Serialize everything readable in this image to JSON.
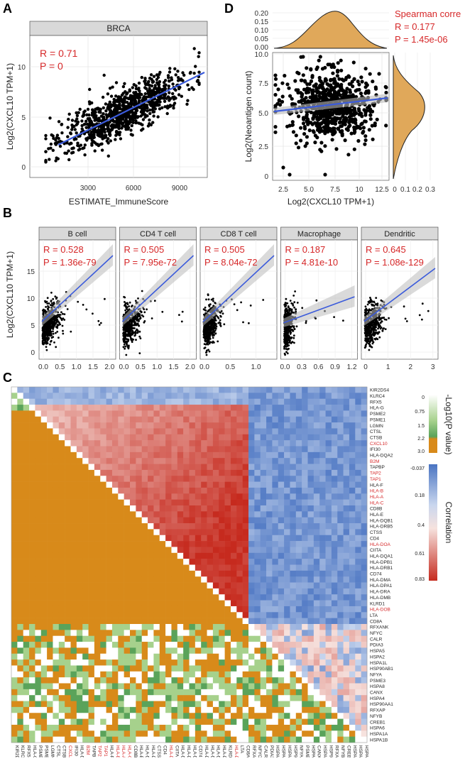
{
  "panels": {
    "A": {
      "letter": "A",
      "strip": "BRCA",
      "xlabel": "ESTIMATE_ImmuneScore",
      "ylabel": "Log2(CXCL10 TPM+1)",
      "stat_r": "R = 0.71",
      "stat_p": "P = 0",
      "xticks": [
        "3000",
        "6000",
        "9000"
      ],
      "yticks": [
        "0",
        "5",
        "10"
      ]
    },
    "D": {
      "letter": "D",
      "xlabel": "Log2(CXCL10 TPM+1)",
      "ylabel": "Log2(Neoantigen count)",
      "title": "Spearman corre",
      "stat_r": "R = 0.177",
      "stat_p": "P = 1.45e-06",
      "xticks": [
        "2.5",
        "5.0",
        "7.5",
        "10",
        "12.5"
      ],
      "yticks": [
        "0",
        "2.5",
        "5.0",
        "7.5",
        "10.0"
      ],
      "top_density_ticks": [
        "0.20",
        "0.15",
        "0.10",
        "0.05",
        "0.00"
      ],
      "right_density_ticks": [
        "0",
        "0.1",
        "0.2",
        "0.3"
      ]
    },
    "B": {
      "letter": "B",
      "ylabel": "Log2(CXCL10 TPM+1)",
      "yticks": [
        "0",
        "5",
        "10",
        "15"
      ],
      "facets": [
        {
          "name": "B cell",
          "r": "R = 0.528",
          "p": "P = 1.36e-79",
          "xticks": [
            "0.0",
            "0.5",
            "1.0",
            "1.5",
            "2.0"
          ]
        },
        {
          "name": "CD4 T cell",
          "r": "R = 0.505",
          "p": "P = 7.95e-72",
          "xticks": [
            "0.0",
            "0.5",
            "1.0",
            "1.5",
            "2.0"
          ]
        },
        {
          "name": "CD8 T cell",
          "r": "R = 0.505",
          "p": "P = 8.04e-72",
          "xticks": [
            "0.0",
            "0.5",
            "1.0"
          ]
        },
        {
          "name": "Macrophage",
          "r": "R = 0.187",
          "p": "P = 4.81e-10",
          "xticks": [
            "0.0",
            "0.3",
            "0.6",
            "0.9",
            "1.2"
          ]
        },
        {
          "name": "Dendritic",
          "r": "R = 0.645",
          "p": "P = 1.08e-129",
          "xticks": [
            "0",
            "1",
            "2",
            "3"
          ]
        }
      ]
    },
    "C": {
      "letter": "C",
      "pval_legend_title": "-Log10(P value)",
      "pval_legend_ticks": [
        "0",
        "0.75",
        "1.5",
        "2.2",
        "3.0"
      ],
      "corr_legend_title": "Correlation",
      "corr_legend_ticks": [
        "-0.037",
        "0.18",
        "0.4",
        "0.61",
        "0.83"
      ],
      "genes": [
        "KIR2DS4",
        "KLRC4",
        "RFX5",
        "HLA-G",
        "PSME2",
        "PSME1",
        "LGMN",
        "CTSL",
        "CTSB",
        "CXCL10",
        "IFI30",
        "HLA-DQA2",
        "B2M",
        "TAPBP",
        "TAP2",
        "TAP1",
        "HLA-F",
        "HLA-B",
        "HLA-A",
        "HLA-C",
        "CD8B",
        "HLA-E",
        "HLA-DQB1",
        "HLA-DRB5",
        "CTSS",
        "CD4",
        "HLA-DOA",
        "CIITA",
        "HLA-DQA1",
        "HLA-DPB1",
        "HLA-DRB1",
        "CD74",
        "HLA-DMA",
        "HLA-DPA1",
        "HLA-DRA",
        "HLA-DMB",
        "KLRD1",
        "HLA-DOB",
        "LTA",
        "CD8A",
        "RFXANK",
        "NFYC",
        "CALR",
        "PDIA3",
        "HSPA5",
        "HSPA2",
        "HSPA1L",
        "HSP90AB1",
        "NFYA",
        "PSME3",
        "HSPA8",
        "CANX",
        "HSPA4",
        "HSP90AA1",
        "RFXAP",
        "NFYB",
        "CREB1",
        "HSPA6",
        "HSPA1A",
        "HSPA1B"
      ],
      "red_genes": [
        "CXCL10",
        "B2M",
        "TAP2",
        "TAP1",
        "HLA-B",
        "HLA-A",
        "HLA-C",
        "HLA-DOA",
        "HLA-DOB"
      ]
    }
  }
}
